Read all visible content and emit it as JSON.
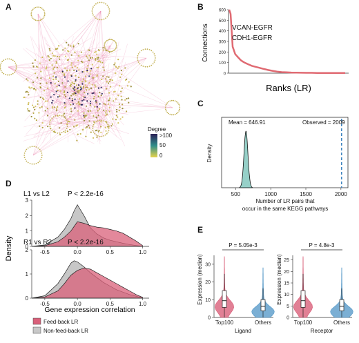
{
  "panels": {
    "A": {
      "label": "A",
      "colorbar": {
        "title": "Degree",
        "ticks": [
          ">100",
          "50",
          "0"
        ],
        "colors": [
          "#2a1f55",
          "#2f8e8a",
          "#e6d34a"
        ]
      }
    },
    "B": {
      "label": "B",
      "ylabel": "Connections",
      "xlabel": "Ranks (LR)",
      "yticks": [
        "0",
        "100",
        "200",
        "300",
        "400",
        "500",
        "600"
      ],
      "annotations": [
        "VCAN-EGFR",
        "CDH1-EGFR"
      ]
    },
    "C": {
      "label": "C",
      "ylabel": "Density",
      "xlabel_line1": "Number of LR pairs that",
      "xlabel_line2": "occur in the same KEGG pathways",
      "xticks": [
        "500",
        "1000",
        "1500",
        "2000"
      ],
      "mean_label": "Mean = 646.91",
      "observed_label": "Observed = 2009"
    },
    "D": {
      "label": "D",
      "ylabel": "Density",
      "xlabel": "Gene expression correlation",
      "top": {
        "title": "L1 vs L2",
        "pvalue": "P < 2.2e-16",
        "yticks": [
          "0",
          "1",
          "2",
          "3"
        ],
        "xticks": [
          "-0.5",
          "0.0",
          "0.5",
          "1.0"
        ]
      },
      "bottom": {
        "title": "R1 vs R2",
        "pvalue": "P < 2.2e-16",
        "yticks": [
          "0",
          "1",
          "2"
        ],
        "xticks": [
          "-0.5",
          "0.0",
          "0.5",
          "1.0"
        ]
      },
      "legend": [
        "Feed-back LR",
        "Non-feed-back LR"
      ]
    },
    "E": {
      "label": "E",
      "ylabel": "Expression (median)",
      "left": {
        "pvalue": "P = 5.05e-3",
        "xlabel": "Ligand",
        "groups": [
          "Top100",
          "Others"
        ],
        "yticks": [
          "0",
          "10",
          "20",
          "30"
        ]
      },
      "right": {
        "pvalue": "P = 4.8e-3",
        "xlabel": "Receptor",
        "groups": [
          "Top100",
          "Others"
        ],
        "yticks": [
          "0",
          "5",
          "10",
          "15",
          "20",
          "25"
        ]
      }
    }
  },
  "colors": {
    "feedback": "#d9607a",
    "nonfeedback": "#b8b8b8",
    "teal": "#3fa99b",
    "blue": "#3f84c0",
    "network_edge": "#e97fa8"
  },
  "chart_data": [
    {
      "type": "line",
      "title": "",
      "xlabel": "Ranks (LR)",
      "ylabel": "Connections",
      "ylim": [
        0,
        600
      ],
      "series": [
        {
          "values": [
            600,
            560,
            250,
            180,
            150,
            120,
            100,
            85,
            70,
            60,
            50,
            40,
            30,
            22,
            15,
            10,
            8,
            6,
            5,
            4,
            3,
            3,
            2,
            2,
            2,
            1,
            1,
            1
          ]
        }
      ]
    },
    {
      "type": "area",
      "title": "",
      "xlabel": "Number of LR pairs that occur in the same KEGG pathways",
      "ylabel": "Density",
      "xlim": [
        300,
        2100
      ],
      "mean": 646.91,
      "observed": 2009
    },
    {
      "type": "area",
      "title": "L1 vs L2",
      "xlim": [
        -0.7,
        1.1
      ],
      "ylim": [
        0,
        3
      ],
      "x": [
        -0.7,
        -0.5,
        -0.3,
        -0.2,
        -0.1,
        -0.05,
        0.0,
        0.1,
        0.2,
        0.3,
        0.4,
        0.5,
        0.6,
        0.7,
        0.8,
        0.9,
        1.0
      ],
      "series": [
        {
          "name": "Feed-back LR",
          "values": [
            0,
            0.05,
            0.3,
            0.6,
            1.0,
            1.3,
            1.6,
            1.5,
            1.35,
            1.25,
            1.2,
            1.1,
            1.0,
            0.85,
            0.6,
            0.35,
            0.05
          ]
        },
        {
          "name": "Non-feed-back LR",
          "values": [
            0,
            0.1,
            0.6,
            1.1,
            1.8,
            2.3,
            2.7,
            2.0,
            1.2,
            0.8,
            0.55,
            0.4,
            0.3,
            0.2,
            0.12,
            0.06,
            0
          ]
        }
      ]
    },
    {
      "type": "area",
      "title": "R1 vs R2",
      "xlim": [
        -0.7,
        1.1
      ],
      "ylim": [
        0,
        2
      ],
      "x": [
        -0.7,
        -0.5,
        -0.3,
        -0.2,
        -0.1,
        -0.05,
        0.0,
        0.1,
        0.2,
        0.3,
        0.4,
        0.5,
        0.6,
        0.7,
        0.8,
        0.9,
        1.0
      ],
      "series": [
        {
          "name": "Feed-back LR",
          "values": [
            0,
            0.05,
            0.3,
            0.6,
            0.95,
            1.05,
            1.15,
            1.25,
            1.2,
            1.05,
            0.9,
            0.75,
            0.6,
            0.45,
            0.3,
            0.15,
            0.03
          ]
        },
        {
          "name": "Non-feed-back LR",
          "values": [
            0,
            0.1,
            0.6,
            1.0,
            1.45,
            1.55,
            1.5,
            1.3,
            1.05,
            0.85,
            0.65,
            0.5,
            0.35,
            0.25,
            0.15,
            0.08,
            0
          ]
        }
      ]
    }
  ]
}
